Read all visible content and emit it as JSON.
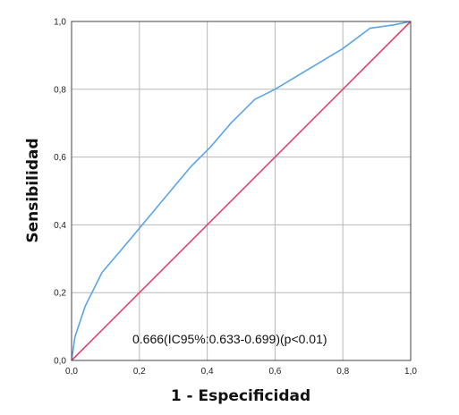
{
  "chart_data": {
    "type": "line",
    "xlabel": "1 - Especificidad",
    "ylabel": "Sensibilidad",
    "xlim": [
      0,
      1
    ],
    "ylim": [
      0,
      1
    ],
    "grid": true,
    "x_ticks": [
      "0,0",
      "0,2",
      "0,4",
      "0,6",
      "0,8",
      "1,0"
    ],
    "y_ticks": [
      "0,0",
      "0,2",
      "0,4",
      "0,6",
      "0,8",
      "1,0"
    ],
    "annotation": "0.666(IC95%:0.633-0.699)(p<0.01)",
    "series": [
      {
        "color": "#5aa5e6",
        "x": [
          0.0,
          0.01,
          0.04,
          0.09,
          0.15,
          0.2,
          0.25,
          0.3,
          0.35,
          0.41,
          0.47,
          0.54,
          0.6,
          0.7,
          0.8,
          0.88,
          0.95,
          1.0
        ],
        "y": [
          0.0,
          0.07,
          0.16,
          0.26,
          0.33,
          0.39,
          0.45,
          0.51,
          0.57,
          0.63,
          0.7,
          0.77,
          0.8,
          0.86,
          0.92,
          0.98,
          0.99,
          1.0
        ]
      },
      {
        "color": "#e8406a",
        "x": [
          0.0,
          1.0
        ],
        "y": [
          0.0,
          1.0
        ]
      }
    ]
  }
}
